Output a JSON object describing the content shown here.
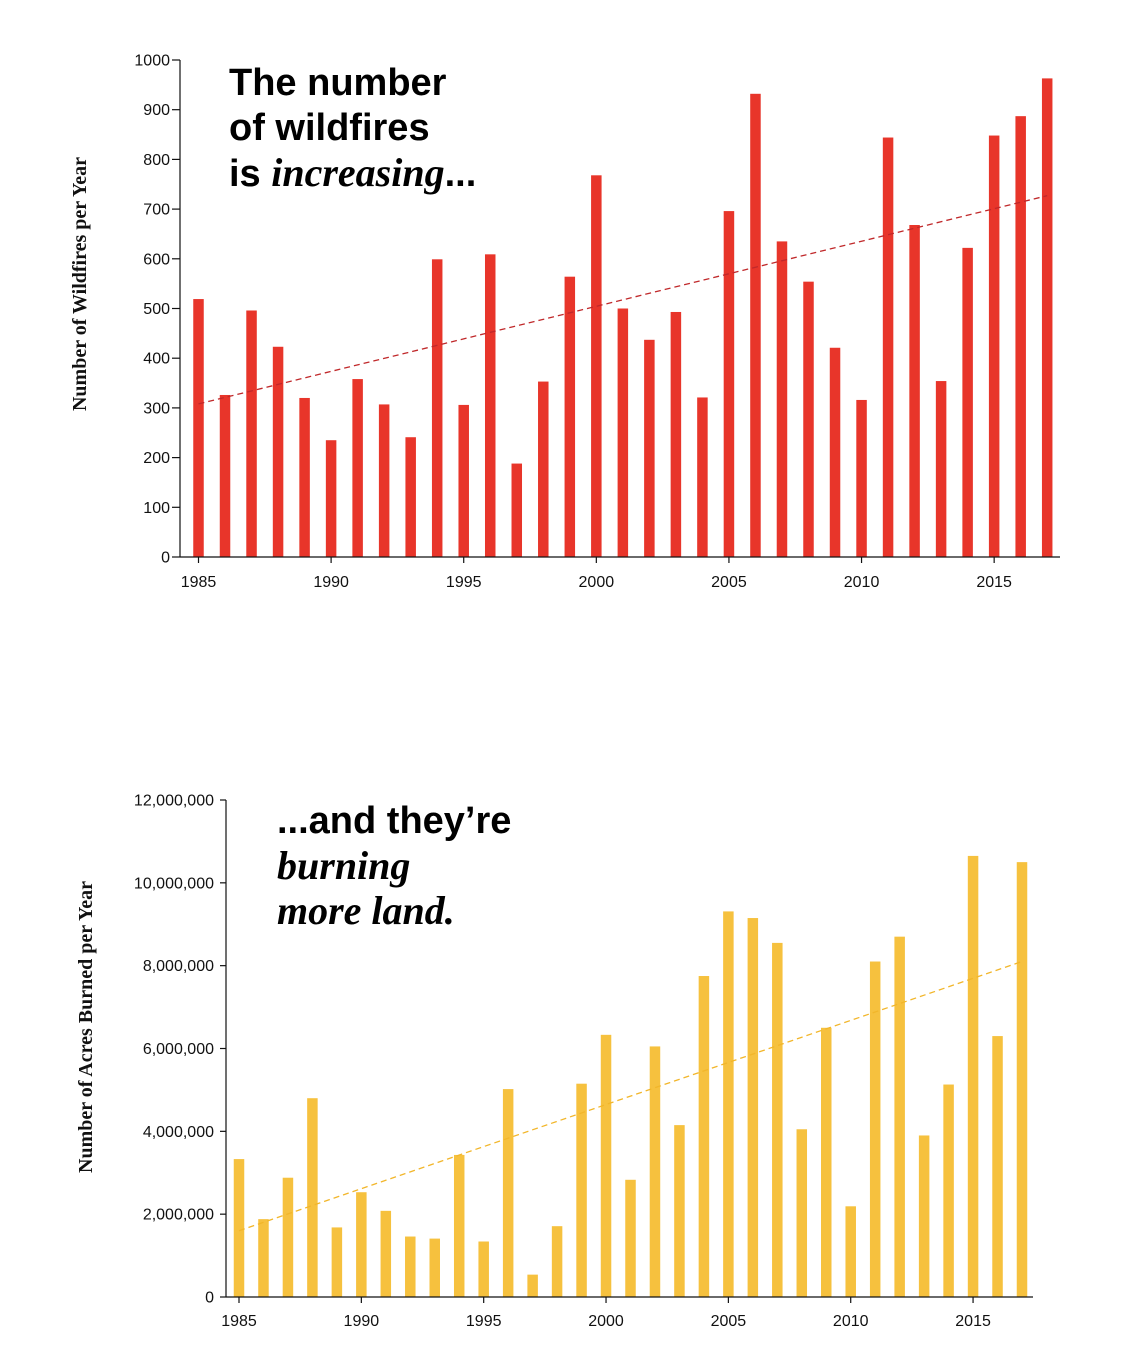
{
  "chart_data": [
    {
      "type": "bar",
      "ylabel": "Number of Wildfires per Year",
      "ylim": [
        0,
        1000
      ],
      "yticks": [
        "0",
        "100",
        "200",
        "300",
        "400",
        "500",
        "600",
        "700",
        "800",
        "900",
        "1000"
      ],
      "xticks": [
        "1985",
        "1990",
        "1995",
        "2000",
        "2005",
        "2010",
        "2015"
      ],
      "x": [
        1985,
        1986,
        1987,
        1988,
        1989,
        1990,
        1991,
        1992,
        1993,
        1994,
        1995,
        1996,
        1997,
        1998,
        1999,
        2000,
        2001,
        2002,
        2003,
        2004,
        2005,
        2006,
        2007,
        2008,
        2009,
        2010,
        2011,
        2012,
        2013,
        2014,
        2015,
        2016,
        2017
      ],
      "values": [
        519,
        326,
        496,
        423,
        320,
        235,
        358,
        307,
        241,
        599,
        306,
        609,
        188,
        353,
        564,
        768,
        500,
        437,
        493,
        321,
        696,
        932,
        635,
        554,
        421,
        316,
        844,
        668,
        354,
        622,
        848,
        887,
        963
      ],
      "trend": {
        "from_year": 1985,
        "from_value": 308,
        "to_year": 2017,
        "to_value": 727
      },
      "headline": {
        "line1": "The number",
        "line2": "of wildfires",
        "line3_prefix": "is ",
        "line3_italic": "increasing",
        "line3_suffix": "..."
      },
      "colors": {
        "bar": "#e8352a",
        "trend": "#c0282a"
      },
      "grid": false
    },
    {
      "type": "bar",
      "ylabel": "Number of Acres Burned per Year",
      "ylim": [
        0,
        12000000
      ],
      "yticks": [
        "0",
        "2,000,000",
        "4,000,000",
        "6,000,000",
        "8,000,000",
        "10,000,000",
        "12,000,000"
      ],
      "xticks": [
        "1985",
        "1990",
        "1995",
        "2000",
        "2005",
        "2010",
        "2015"
      ],
      "x": [
        1985,
        1986,
        1987,
        1988,
        1989,
        1990,
        1991,
        1992,
        1993,
        1994,
        1995,
        1996,
        1997,
        1998,
        1999,
        2000,
        2001,
        2002,
        2003,
        2004,
        2005,
        2006,
        2007,
        2008,
        2009,
        2010,
        2011,
        2012,
        2013,
        2014,
        2015,
        2016,
        2017
      ],
      "values": [
        3330000,
        1880000,
        2880000,
        4800000,
        1680000,
        2530000,
        2080000,
        1460000,
        1410000,
        3430000,
        1340000,
        5020000,
        540000,
        1710000,
        5150000,
        6330000,
        2830000,
        6050000,
        4150000,
        7750000,
        9310000,
        9150000,
        8550000,
        4050000,
        6500000,
        2190000,
        8100000,
        8700000,
        3900000,
        5130000,
        10650000,
        6300000,
        10500000
      ],
      "trend": {
        "from_year": 1985,
        "from_value": 1600000,
        "to_year": 2017,
        "to_value": 8100000
      },
      "headline": {
        "line1": "...and they’re",
        "line2_italic": "burning",
        "line3_italic": "more land."
      },
      "colors": {
        "bar": "#f6c13e",
        "trend": "#f2b62a"
      },
      "grid": false
    }
  ]
}
